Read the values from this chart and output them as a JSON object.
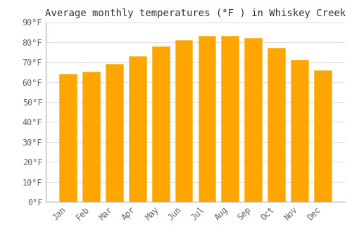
{
  "months": [
    "Jan",
    "Feb",
    "Mar",
    "Apr",
    "May",
    "Jun",
    "Jul",
    "Aug",
    "Sep",
    "Oct",
    "Nov",
    "Dec"
  ],
  "values": [
    64,
    65,
    69,
    73,
    78,
    81,
    83,
    83,
    82,
    77,
    71,
    66
  ],
  "title": "Average monthly temperatures (°F ) in Whiskey Creek",
  "bar_color": "#FFA500",
  "bar_edge_color": "#F0C040",
  "background_color": "#FFFFFF",
  "plot_bg_color": "#FFFFFF",
  "ylim": [
    0,
    90
  ],
  "ytick_step": 10,
  "grid_color": "#E0E0E0",
  "title_fontsize": 10,
  "tick_fontsize": 8.5
}
